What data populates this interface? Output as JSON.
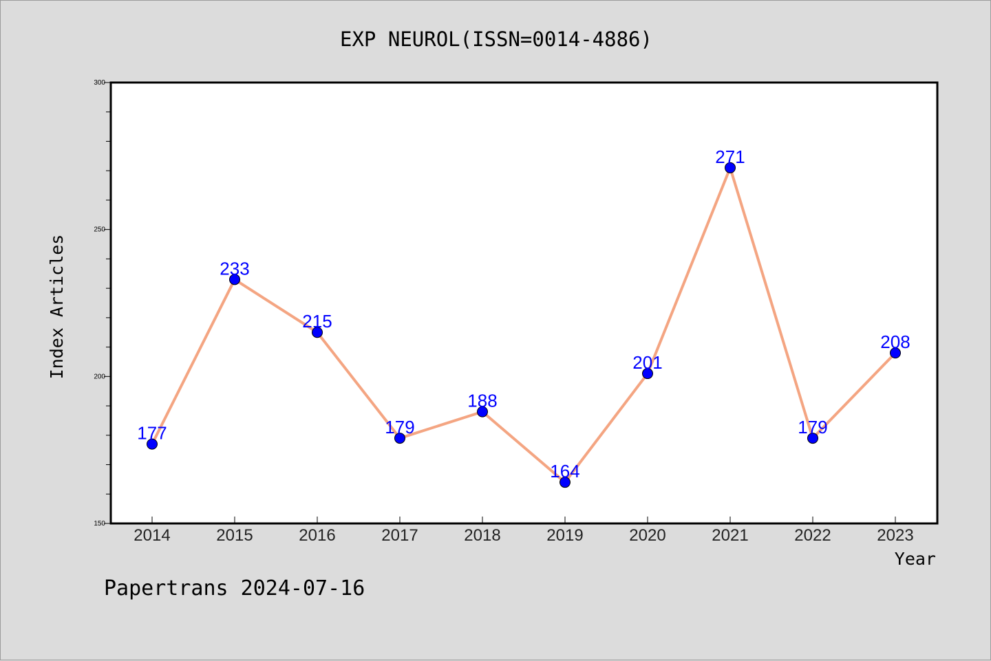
{
  "chart_data": {
    "type": "line",
    "title": "EXP NEUROL(ISSN=0014-4886)",
    "xlabel": "Year",
    "ylabel": "Index Articles",
    "categories": [
      "2014",
      "2015",
      "2016",
      "2017",
      "2018",
      "2019",
      "2020",
      "2021",
      "2022",
      "2023"
    ],
    "series": [
      {
        "values": [
          177,
          233,
          215,
          179,
          188,
          164,
          201,
          271,
          179,
          208
        ]
      }
    ],
    "ylim": [
      150,
      300
    ],
    "y_major_ticks": [
      150,
      200,
      250,
      300
    ],
    "y_minor_step": 10,
    "grid": false,
    "data_labels": true,
    "colors": {
      "line": "#f4a582",
      "marker": "#0000ff",
      "label": "#0000ff",
      "background": "#dcdcdc",
      "plot_background": "#ffffff"
    },
    "footer": "Papertrans 2024-07-16"
  }
}
